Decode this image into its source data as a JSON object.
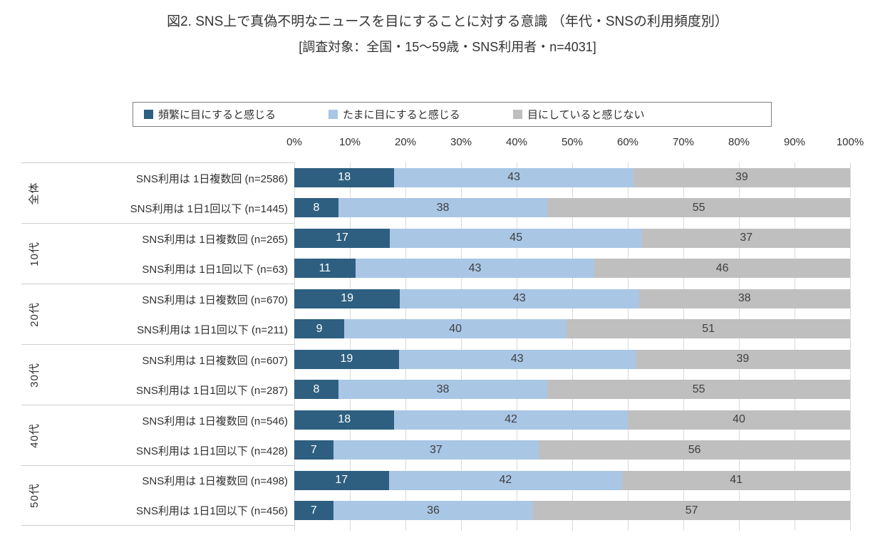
{
  "chart_data": {
    "type": "bar",
    "orientation": "horizontal",
    "stacked": true,
    "unit": "%",
    "title": "図2. SNS上で真偽不明なニュースを目にすることに対する意識 （年代・SNSの利用頻度別）",
    "subtitle": "[調査対象：全国・15〜59歳・SNS利用者・n=4031]",
    "legend": [
      "頻繁に目にすると感じる",
      "たまに目にすると感じる",
      "目にしていると感じない"
    ],
    "series_colors": [
      "#2e5f80",
      "#a9c6e5",
      "#bfbfbf"
    ],
    "xlim": [
      0,
      100
    ],
    "x_tick_labels": [
      "0%",
      "10%",
      "20%",
      "30%",
      "40%",
      "50%",
      "60%",
      "70%",
      "80%",
      "90%",
      "100%"
    ],
    "grid": true,
    "legend_position": "top",
    "groups": [
      {
        "name": "全体",
        "rows": [
          {
            "label": "SNS利用は 1日複数回  (n=2586)",
            "values": [
              18,
              43,
              39
            ]
          },
          {
            "label": "SNS利用は 1日1回以下 (n=1445)",
            "values": [
              8,
              38,
              55
            ]
          }
        ]
      },
      {
        "name": "10代",
        "rows": [
          {
            "label": "SNS利用は 1日複数回  (n=265)",
            "values": [
              17,
              45,
              37
            ]
          },
          {
            "label": "SNS利用は 1日1回以下 (n=63)",
            "values": [
              11,
              43,
              46
            ]
          }
        ]
      },
      {
        "name": "20代",
        "rows": [
          {
            "label": "SNS利用は 1日複数回  (n=670)",
            "values": [
              19,
              43,
              38
            ]
          },
          {
            "label": "SNS利用は 1日1回以下 (n=211)",
            "values": [
              9,
              40,
              51
            ]
          }
        ]
      },
      {
        "name": "30代",
        "rows": [
          {
            "label": "SNS利用は 1日複数回  (n=607)",
            "values": [
              19,
              43,
              39
            ]
          },
          {
            "label": "SNS利用は 1日1回以下 (n=287)",
            "values": [
              8,
              38,
              55
            ]
          }
        ]
      },
      {
        "name": "40代",
        "rows": [
          {
            "label": "SNS利用は 1日複数回  (n=546)",
            "values": [
              18,
              42,
              40
            ]
          },
          {
            "label": "SNS利用は 1日1回以下 (n=428)",
            "values": [
              7,
              37,
              56
            ]
          }
        ]
      },
      {
        "name": "50代",
        "rows": [
          {
            "label": "SNS利用は 1日複数回  (n=498)",
            "values": [
              17,
              42,
              41
            ]
          },
          {
            "label": "SNS利用は 1日1回以下 (n=456)",
            "values": [
              7,
              36,
              57
            ]
          }
        ]
      }
    ]
  }
}
